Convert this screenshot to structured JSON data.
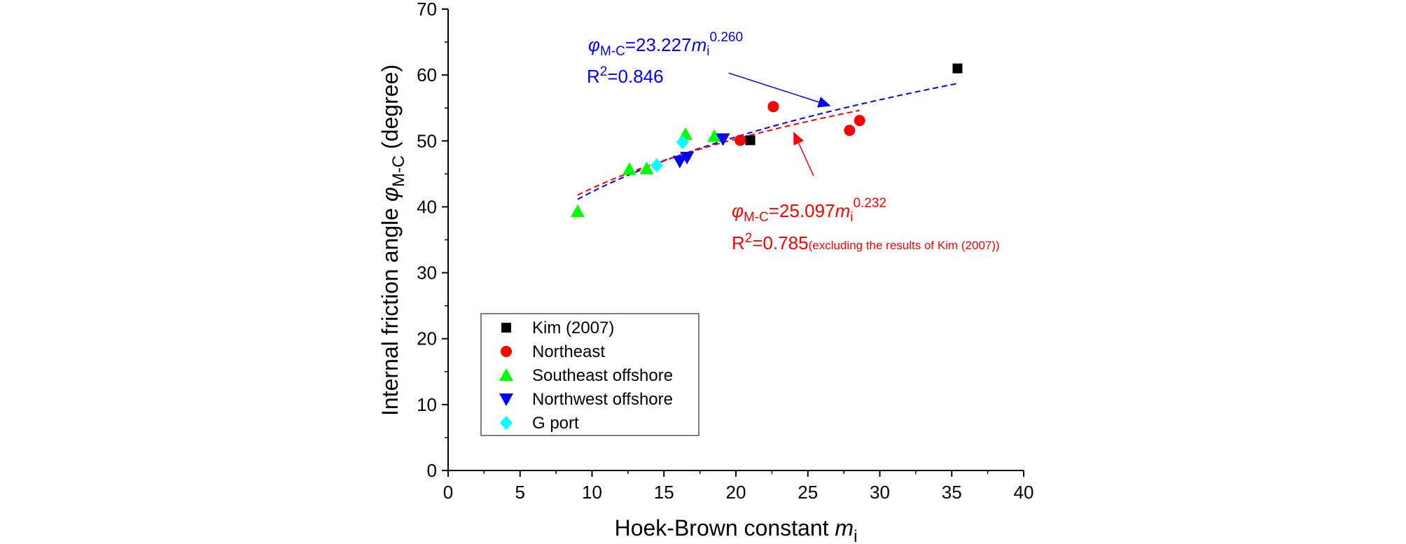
{
  "chart_data": {
    "type": "scatter",
    "title": "",
    "xlabel": "Hoek-Brown constant ",
    "xlabel_italic": "m",
    "xlabel_sub": "i",
    "ylabel": "Internal friction angle ",
    "ylabel_symbol": "φ",
    "ylabel_sub": "M-C",
    "ylabel_unit": " (degree)",
    "xlim": [
      0,
      40
    ],
    "ylim": [
      0,
      70
    ],
    "xticks": [
      0,
      5,
      10,
      15,
      20,
      25,
      30,
      35,
      40
    ],
    "yticks": [
      0,
      10,
      20,
      30,
      40,
      50,
      60,
      70
    ],
    "grid": false,
    "legend_position": "bottom-left",
    "series": [
      {
        "name": "Kim (2007)",
        "marker": "square",
        "color": "#000000",
        "x": [
          21.0,
          35.4
        ],
        "y": [
          50.1,
          61.0
        ]
      },
      {
        "name": "Northeast",
        "marker": "circle",
        "color": "#ff0000",
        "x": [
          20.3,
          22.6,
          27.9,
          28.6
        ],
        "y": [
          50.1,
          55.2,
          51.6,
          53.1
        ]
      },
      {
        "name": "Southeast offshore",
        "marker": "triangle-up",
        "color": "#00ff00",
        "x": [
          9.0,
          12.6,
          13.8,
          16.5,
          18.5
        ],
        "y": [
          39.3,
          45.7,
          45.8,
          51.0,
          50.7
        ]
      },
      {
        "name": "Northwest offshore",
        "marker": "triangle-down",
        "color": "#0000ff",
        "x": [
          16.1,
          16.6,
          19.1
        ],
        "y": [
          46.9,
          47.5,
          50.3
        ]
      },
      {
        "name": "G port",
        "marker": "diamond",
        "color": "#00ffff",
        "x": [
          14.5,
          16.3
        ],
        "y": [
          46.3,
          49.8
        ]
      }
    ],
    "fits": [
      {
        "color": "#0000ff",
        "coef": 23.227,
        "exp": 0.26,
        "x_range": [
          9.0,
          35.4
        ],
        "label_prefix": "φ",
        "label_sub": "M-C",
        "label_mid": "=23.227",
        "label_m": "m",
        "label_msub": "i",
        "label_sup": "0.260",
        "r2_prefix": "R",
        "r2_sup": "2",
        "r2_value": "=0.846",
        "r2_note": ""
      },
      {
        "color": "#ff0000",
        "coef": 25.097,
        "exp": 0.232,
        "x_range": [
          9.0,
          28.6
        ],
        "label_prefix": "φ",
        "label_sub": "M-C",
        "label_mid": "=25.097",
        "label_m": "m",
        "label_msub": "i",
        "label_sup": "0.232",
        "r2_prefix": "R",
        "r2_sup": "2",
        "r2_value": "=0.785",
        "r2_note": "(excluding the results of Kim (2007))"
      }
    ],
    "annotations": [
      {
        "color": "#0000ff",
        "from": [
          19.5,
          60.3
        ],
        "to": [
          26.6,
          55.3
        ]
      },
      {
        "color": "#ff0000",
        "from": [
          25.4,
          44.7
        ],
        "to": [
          24.0,
          51.4
        ]
      }
    ]
  }
}
